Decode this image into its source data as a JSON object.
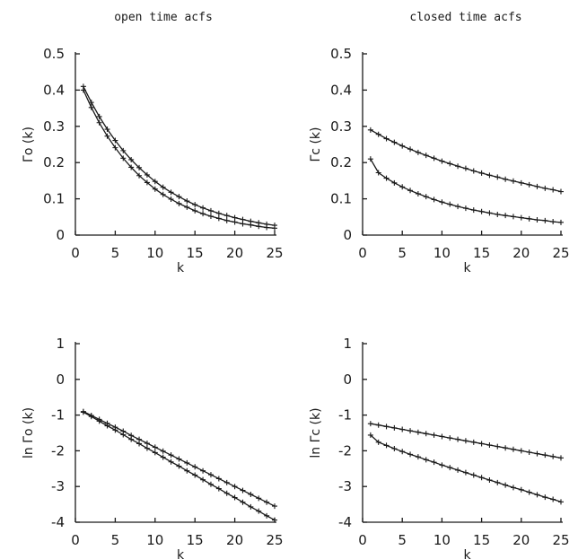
{
  "column_titles": [
    "open time acfs",
    "closed time acfs"
  ],
  "chart_data": [
    {
      "type": "line",
      "ylabel": "Γo (k)",
      "xlabel": "k",
      "xlim": [
        0,
        25
      ],
      "ylim": [
        0,
        0.5
      ],
      "xticks": [
        "0",
        "5",
        "10",
        "15",
        "20",
        "25"
      ],
      "yticks": [
        "0",
        "0.1",
        "0.2",
        "0.3",
        "0.4",
        "0.5"
      ],
      "series": [
        {
          "x": [
            1,
            2,
            3,
            4,
            5,
            6,
            7,
            8,
            9,
            10,
            11,
            12,
            13,
            14,
            15,
            16,
            17,
            18,
            19,
            20,
            21,
            22,
            23,
            24,
            25
          ],
          "values": [
            0.41,
            0.366,
            0.327,
            0.292,
            0.261,
            0.233,
            0.208,
            0.186,
            0.166,
            0.148,
            0.132,
            0.118,
            0.106,
            0.094,
            0.084,
            0.075,
            0.067,
            0.06,
            0.054,
            0.048,
            0.043,
            0.038,
            0.034,
            0.03,
            0.027
          ]
        },
        {
          "x": [
            1,
            2,
            3,
            4,
            5,
            6,
            7,
            8,
            9,
            10,
            11,
            12,
            13,
            14,
            15,
            16,
            17,
            18,
            19,
            20,
            21,
            22,
            23,
            24,
            25
          ],
          "values": [
            0.4,
            0.352,
            0.31,
            0.273,
            0.241,
            0.212,
            0.187,
            0.164,
            0.145,
            0.127,
            0.112,
            0.099,
            0.087,
            0.077,
            0.067,
            0.059,
            0.052,
            0.046,
            0.04,
            0.036,
            0.031,
            0.028,
            0.024,
            0.021,
            0.019
          ]
        }
      ]
    },
    {
      "type": "line",
      "ylabel": "Γc (k)",
      "xlabel": "k",
      "xlim": [
        0,
        25
      ],
      "ylim": [
        0,
        0.5
      ],
      "xticks": [
        "0",
        "5",
        "10",
        "15",
        "20",
        "25"
      ],
      "yticks": [
        "0",
        "0.1",
        "0.2",
        "0.3",
        "0.4",
        "0.5"
      ],
      "series": [
        {
          "x": [
            1,
            2,
            3,
            4,
            5,
            6,
            7,
            8,
            9,
            10,
            11,
            12,
            13,
            14,
            15,
            16,
            17,
            18,
            19,
            20,
            21,
            22,
            23,
            24,
            25
          ],
          "values": [
            0.29,
            0.278,
            0.266,
            0.256,
            0.246,
            0.237,
            0.228,
            0.22,
            0.212,
            0.204,
            0.197,
            0.19,
            0.184,
            0.177,
            0.171,
            0.165,
            0.16,
            0.154,
            0.149,
            0.144,
            0.139,
            0.134,
            0.129,
            0.125,
            0.12
          ]
        },
        {
          "x": [
            1,
            2,
            3,
            4,
            5,
            6,
            7,
            8,
            9,
            10,
            11,
            12,
            13,
            14,
            15,
            16,
            17,
            18,
            19,
            20,
            21,
            22,
            23,
            24,
            25
          ],
          "values": [
            0.21,
            0.172,
            0.157,
            0.144,
            0.133,
            0.123,
            0.114,
            0.106,
            0.098,
            0.091,
            0.085,
            0.079,
            0.074,
            0.069,
            0.065,
            0.061,
            0.057,
            0.054,
            0.051,
            0.048,
            0.045,
            0.042,
            0.04,
            0.037,
            0.035
          ]
        }
      ]
    },
    {
      "type": "line",
      "ylabel": "ln Γo (k)",
      "xlabel": "k",
      "xlim": [
        0,
        25
      ],
      "ylim": [
        -4,
        1
      ],
      "xticks": [
        "0",
        "5",
        "10",
        "15",
        "20",
        "25"
      ],
      "yticks": [
        "-4",
        "-3",
        "-2",
        "-1",
        "0",
        "1"
      ],
      "series": [
        {
          "x": [
            1,
            2,
            3,
            4,
            5,
            6,
            7,
            8,
            9,
            10,
            11,
            12,
            13,
            14,
            15,
            16,
            17,
            18,
            19,
            20,
            21,
            22,
            23,
            24,
            25
          ],
          "values": [
            -0.9,
            -1.01,
            -1.12,
            -1.23,
            -1.34,
            -1.45,
            -1.57,
            -1.68,
            -1.79,
            -1.9,
            -2.01,
            -2.12,
            -2.23,
            -2.34,
            -2.45,
            -2.56,
            -2.67,
            -2.78,
            -2.89,
            -3.0,
            -3.11,
            -3.22,
            -3.33,
            -3.44,
            -3.55
          ]
        },
        {
          "x": [
            1,
            2,
            3,
            4,
            5,
            6,
            7,
            8,
            9,
            10,
            11,
            12,
            13,
            14,
            15,
            16,
            17,
            18,
            19,
            20,
            21,
            22,
            23,
            24,
            25
          ],
          "values": [
            -0.92,
            -1.04,
            -1.17,
            -1.3,
            -1.42,
            -1.55,
            -1.68,
            -1.8,
            -1.93,
            -2.05,
            -2.18,
            -2.31,
            -2.43,
            -2.56,
            -2.68,
            -2.81,
            -2.94,
            -3.06,
            -3.19,
            -3.31,
            -3.44,
            -3.57,
            -3.69,
            -3.82,
            -3.94
          ]
        }
      ]
    },
    {
      "type": "line",
      "ylabel": "ln Γc (k)",
      "xlabel": "k",
      "xlim": [
        0,
        25
      ],
      "ylim": [
        -4,
        1
      ],
      "xticks": [
        "0",
        "5",
        "10",
        "15",
        "20",
        "25"
      ],
      "yticks": [
        "-4",
        "-3",
        "-2",
        "-1",
        "0",
        "1"
      ],
      "series": [
        {
          "x": [
            1,
            2,
            3,
            4,
            5,
            6,
            7,
            8,
            9,
            10,
            11,
            12,
            13,
            14,
            15,
            16,
            17,
            18,
            19,
            20,
            21,
            22,
            23,
            24,
            25
          ],
          "values": [
            -1.24,
            -1.28,
            -1.32,
            -1.36,
            -1.4,
            -1.44,
            -1.48,
            -1.52,
            -1.56,
            -1.6,
            -1.64,
            -1.68,
            -1.72,
            -1.76,
            -1.8,
            -1.84,
            -1.88,
            -1.92,
            -1.96,
            -2.0,
            -2.04,
            -2.08,
            -2.12,
            -2.16,
            -2.2
          ]
        },
        {
          "x": [
            1,
            2,
            3,
            4,
            5,
            6,
            7,
            8,
            9,
            10,
            11,
            12,
            13,
            14,
            15,
            16,
            17,
            18,
            19,
            20,
            21,
            22,
            23,
            24,
            25
          ],
          "values": [
            -1.56,
            -1.76,
            -1.85,
            -1.94,
            -2.02,
            -2.1,
            -2.17,
            -2.25,
            -2.32,
            -2.4,
            -2.47,
            -2.54,
            -2.61,
            -2.68,
            -2.75,
            -2.82,
            -2.89,
            -2.96,
            -3.03,
            -3.09,
            -3.16,
            -3.23,
            -3.3,
            -3.36,
            -3.43
          ]
        }
      ]
    }
  ]
}
